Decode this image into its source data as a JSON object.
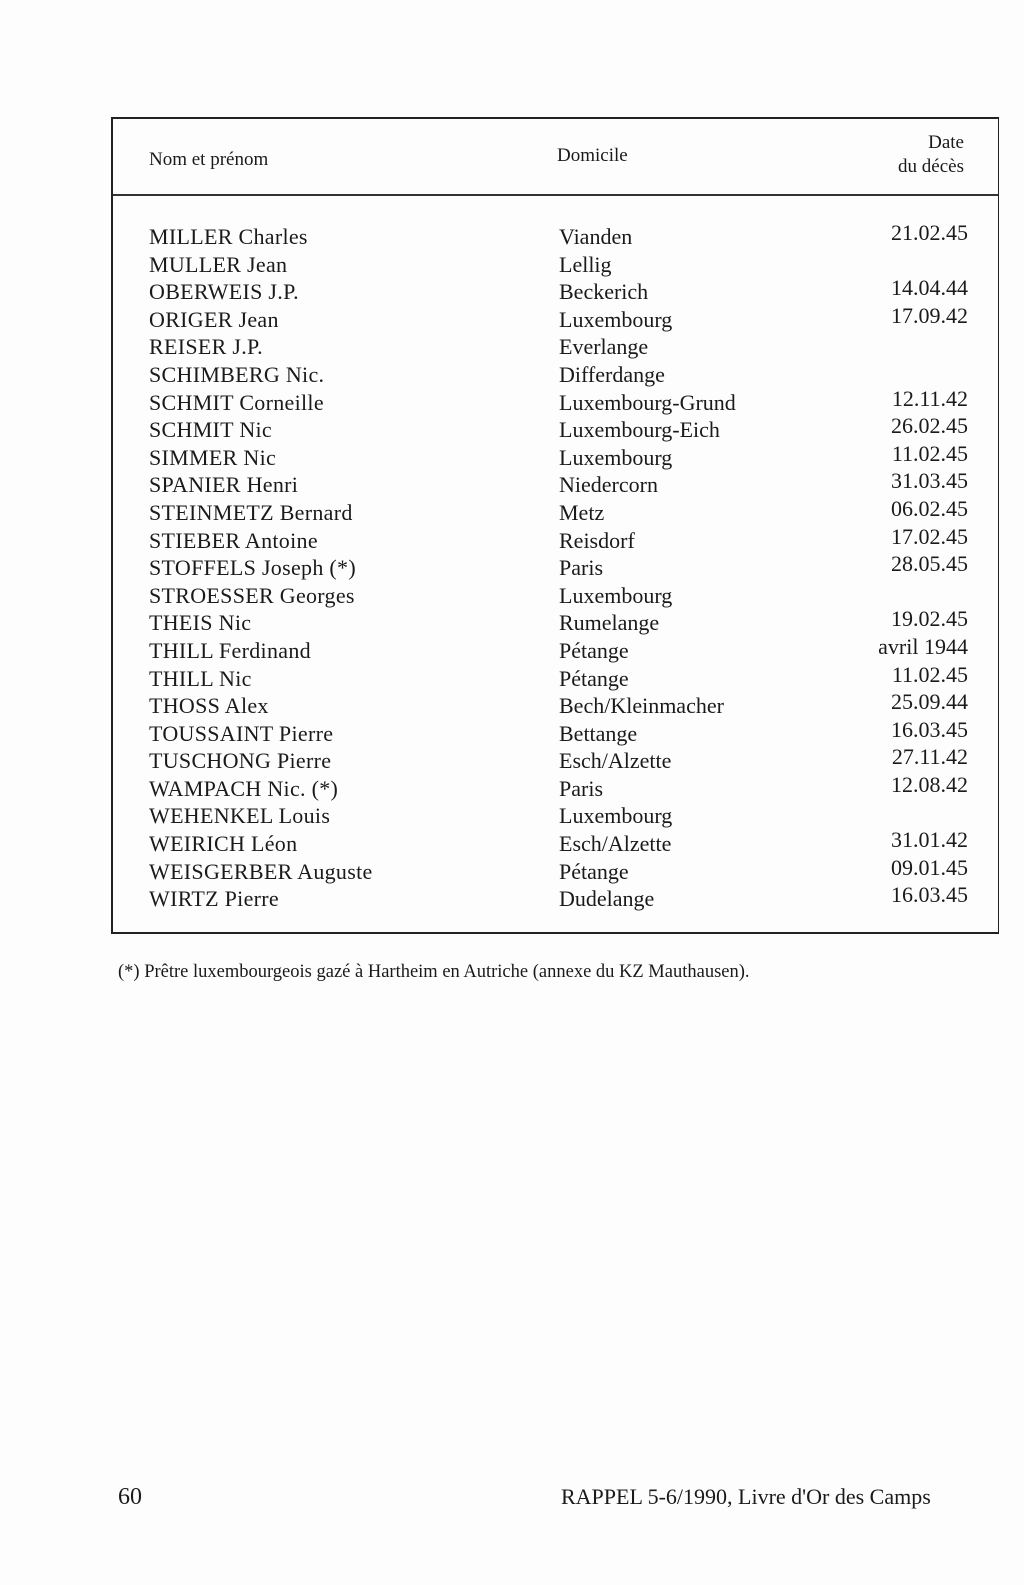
{
  "table": {
    "headers": {
      "name": "Nom et prénom",
      "domicile": "Domicile",
      "date_line1": "Date",
      "date_line2": "du décès"
    },
    "rows": [
      {
        "name": "MILLER Charles",
        "domicile": "Vianden",
        "date": "21.02.45"
      },
      {
        "name": "MULLER Jean",
        "domicile": "Lellig",
        "date": ""
      },
      {
        "name": "OBERWEIS J.P.",
        "domicile": "Beckerich",
        "date": "14.04.44"
      },
      {
        "name": "ORIGER Jean",
        "domicile": "Luxembourg",
        "date": "17.09.42"
      },
      {
        "name": "REISER J.P.",
        "domicile": "Everlange",
        "date": ""
      },
      {
        "name": "SCHIMBERG Nic.",
        "domicile": "Differdange",
        "date": ""
      },
      {
        "name": "SCHMIT Corneille",
        "domicile": "Luxembourg-Grund",
        "date": "12.11.42"
      },
      {
        "name": "SCHMIT Nic",
        "domicile": "Luxembourg-Eich",
        "date": "26.02.45"
      },
      {
        "name": "SIMMER Nic",
        "domicile": "Luxembourg",
        "date": "11.02.45"
      },
      {
        "name": "SPANIER Henri",
        "domicile": "Niedercorn",
        "date": "31.03.45"
      },
      {
        "name": "STEINMETZ Bernard",
        "domicile": "Metz",
        "date": "06.02.45"
      },
      {
        "name": "STIEBER Antoine",
        "domicile": "Reisdorf",
        "date": "17.02.45"
      },
      {
        "name": "STOFFELS Joseph (*)",
        "domicile": "Paris",
        "date": "28.05.45"
      },
      {
        "name": "STROESSER Georges",
        "domicile": "Luxembourg",
        "date": ""
      },
      {
        "name": "THEIS Nic",
        "domicile": "Rumelange",
        "date": "19.02.45"
      },
      {
        "name": "THILL Ferdinand",
        "domicile": "Pétange",
        "date": "avril 1944"
      },
      {
        "name": "THILL Nic",
        "domicile": "Pétange",
        "date": "11.02.45"
      },
      {
        "name": "THOSS Alex",
        "domicile": "Bech/Kleinmacher",
        "date": "25.09.44"
      },
      {
        "name": "TOUSSAINT Pierre",
        "domicile": "Bettange",
        "date": "16.03.45"
      },
      {
        "name": "TUSCHONG Pierre",
        "domicile": "Esch/Alzette",
        "date": "27.11.42"
      },
      {
        "name": "WAMPACH Nic. (*)",
        "domicile": "Paris",
        "date": "12.08.42"
      },
      {
        "name": "WEHENKEL Louis",
        "domicile": "Luxembourg",
        "date": ""
      },
      {
        "name": "WEIRICH Léon",
        "domicile": "Esch/Alzette",
        "date": "31.01.42"
      },
      {
        "name": "WEISGERBER Auguste",
        "domicile": "Pétange",
        "date": "09.01.45"
      },
      {
        "name": "WIRTZ Pierre",
        "domicile": "Dudelange",
        "date": "16.03.45"
      }
    ]
  },
  "footnote": "(*) Prêtre luxembourgeois gazé à Hartheim en Autriche (annexe du KZ Mauthausen).",
  "footer": {
    "page_number": "60",
    "running_title": "RAPPEL 5-6/1990, Livre d'Or des Camps"
  }
}
